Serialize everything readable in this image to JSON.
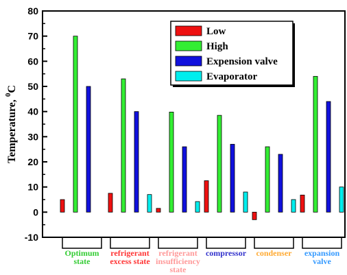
{
  "chart_data": {
    "type": "bar",
    "ylabel": "Temperature, ",
    "ylabel_sup": "0",
    "ylabel_unit": "C",
    "ylim": [
      -10,
      80
    ],
    "yticks": [
      "-10",
      "0",
      "10",
      "20",
      "30",
      "40",
      "50",
      "60",
      "70",
      "80"
    ],
    "legend_position": "top-right",
    "categories": [
      {
        "lines": [
          "Optimum",
          "state"
        ],
        "color": "#33cc33"
      },
      {
        "lines": [
          "refrigerant",
          "excess state"
        ],
        "color": "#ff3333"
      },
      {
        "lines": [
          "refrigerant",
          "insufficiency",
          "state"
        ],
        "color": "#ff9999"
      },
      {
        "lines": [
          "compressor"
        ],
        "color": "#3333cc"
      },
      {
        "lines": [
          "condenser"
        ],
        "color": "#ffaa33"
      },
      {
        "lines": [
          "expansion",
          "valve"
        ],
        "color": "#3399ff"
      }
    ],
    "series": [
      {
        "name": "Low",
        "color": "#ee1111",
        "values": [
          5,
          7.5,
          1.5,
          12.5,
          -3,
          6.8
        ]
      },
      {
        "name": "High",
        "color": "#33ee33",
        "values": [
          70,
          53,
          39.8,
          38.5,
          26,
          54
        ]
      },
      {
        "name": "Expension valve",
        "color": "#1111dd",
        "values": [
          50,
          40,
          26,
          27,
          23,
          44
        ]
      },
      {
        "name": "Evaporator",
        "color": "#00eeee",
        "values": [
          0,
          7,
          4.2,
          8,
          5,
          10
        ]
      }
    ]
  }
}
